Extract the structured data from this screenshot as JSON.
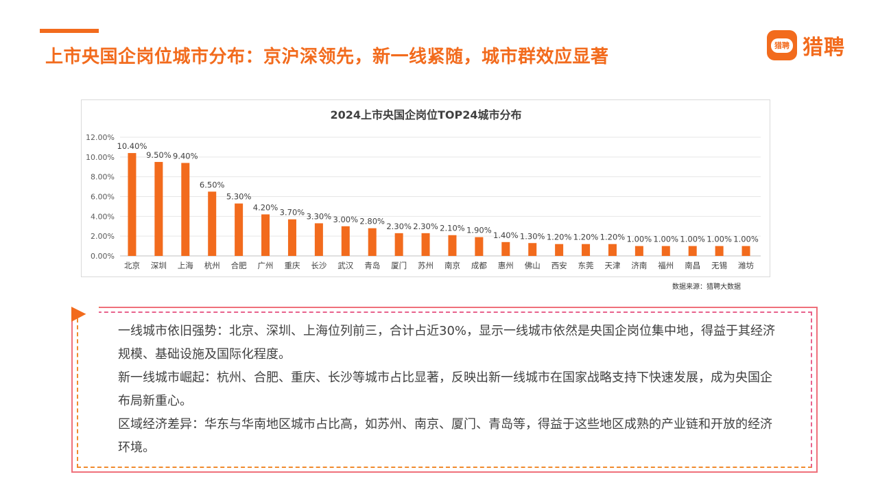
{
  "header": {
    "title": "上市央国企岗位城市分布：京沪深领先，新一线紧随，城市群效应显著",
    "logo_badge": "猎聘",
    "logo_text": "猎聘"
  },
  "colors": {
    "accent": "#f26b1d",
    "bar": "#f26b1d",
    "note_border": "#ef6f7a"
  },
  "chart_data": {
    "type": "bar",
    "title": "2024上市央国企岗位TOP24城市分布",
    "categories": [
      "北京",
      "深圳",
      "上海",
      "杭州",
      "合肥",
      "广州",
      "重庆",
      "长沙",
      "武汉",
      "青岛",
      "厦门",
      "苏州",
      "南京",
      "成都",
      "惠州",
      "佛山",
      "西安",
      "东莞",
      "天津",
      "济南",
      "福州",
      "南昌",
      "无锡",
      "潍坊"
    ],
    "values": [
      10.4,
      9.5,
      9.4,
      6.5,
      5.3,
      4.2,
      3.7,
      3.3,
      3.0,
      2.8,
      2.3,
      2.3,
      2.1,
      1.9,
      1.4,
      1.3,
      1.2,
      1.2,
      1.2,
      1.0,
      1.0,
      1.0,
      1.0,
      1.0
    ],
    "data_labels": [
      "10.40%",
      "9.50%",
      "9.40%",
      "6.50%",
      "5.30%",
      "4.20%",
      "3.70%",
      "3.30%",
      "3.00%",
      "2.80%",
      "2.30%",
      "2.30%",
      "2.10%",
      "1.90%",
      "1.40%",
      "1.30%",
      "1.20%",
      "1.20%",
      "1.20%",
      "1.00%",
      "1.00%",
      "1.00%",
      "1.00%",
      "1.00%"
    ],
    "y_ticks": [
      "0.00%",
      "2.00%",
      "4.00%",
      "6.00%",
      "8.00%",
      "10.00%",
      "12.00%"
    ],
    "ylim": [
      0,
      12
    ],
    "grid": true,
    "legend": "none",
    "source": "数据来源：猎聘大数据"
  },
  "notes": [
    "一线城市依旧强势：北京、深圳、上海位列前三，合计占近30%，显示一线城市依然是央国企岗位集中地，得益于其经济规模、基础设施及国际化程度。",
    "新一线城市崛起：杭州、合肥、重庆、长沙等城市占比显著，反映出新一线城市在国家战略支持下快速发展，成为央国企布局新重心。",
    "区域经济差异：华东与华南地区城市占比高，如苏州、南京、厦门、青岛等，得益于这些地区成熟的产业链和开放的经济环境。"
  ]
}
